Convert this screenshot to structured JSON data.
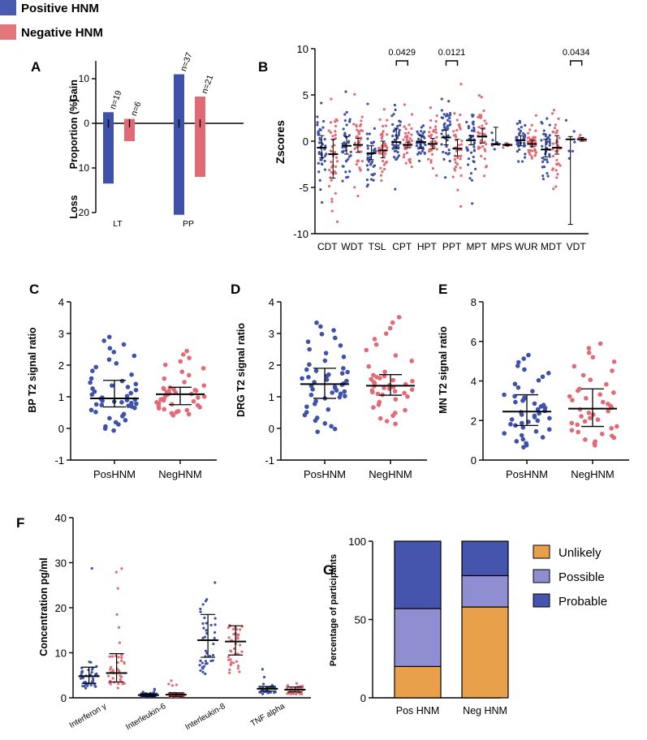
{
  "legend": {
    "items": [
      {
        "label": "Positive HNM",
        "color": "#4a5ab0"
      },
      {
        "label": "Negative HNM",
        "color": "#e5767c"
      }
    ]
  },
  "colors": {
    "pos": "#3d52a8",
    "neg": "#e26a74",
    "unlikely": "#e8a04a",
    "possible": "#8e8ed0",
    "probable": "#4555ad"
  },
  "chart_data": [
    {
      "id": "A",
      "type": "bar",
      "panel_label": "A",
      "title": "",
      "ylabel": "Proportion (%)",
      "gain_label": "Gain",
      "loss_label": "Loss",
      "ylim": [
        -20,
        14
      ],
      "yticks": [
        {
          "v": 10,
          "t": "10"
        },
        {
          "v": 0,
          "t": "0"
        },
        {
          "v": -10,
          "t": "10"
        },
        {
          "v": -20,
          "t": "20"
        }
      ],
      "categories": [
        "LT",
        "PP"
      ],
      "n_labels": [
        [
          "n=19",
          "n=6"
        ],
        [
          "n=37",
          "n=21"
        ]
      ],
      "series": [
        {
          "name": "Positive HNM",
          "gain": [
            2.5,
            11.0
          ],
          "loss": [
            -13.5,
            -20.5
          ]
        },
        {
          "name": "Negative HNM",
          "gain": [
            1.0,
            6.0
          ],
          "loss": [
            -4.0,
            -12.0
          ]
        }
      ]
    },
    {
      "id": "B",
      "type": "scatter",
      "panel_label": "B",
      "ylabel": "Zscores",
      "ylim": [
        -10,
        10
      ],
      "yticks": [
        "-10",
        "-5",
        "0",
        "5",
        "10"
      ],
      "categories": [
        "CDT",
        "WDT",
        "TSL",
        "CPT",
        "HPT",
        "PPT",
        "MPT",
        "MPS",
        "WUR",
        "MDT",
        "VDT"
      ],
      "series": [
        {
          "name": "Positive HNM",
          "median": [
            -0.7,
            -0.5,
            -1.3,
            -0.1,
            -0.1,
            0.4,
            0.1,
            -0.3,
            0.1,
            -0.9,
            0.2
          ],
          "q1": [
            -1.8,
            -1.4,
            -2.0,
            -0.8,
            -0.8,
            -0.4,
            -0.4,
            -0.4,
            -0.5,
            -1.7,
            -9.0
          ],
          "q3": [
            0.6,
            0.5,
            -0.5,
            1.4,
            0.6,
            1.2,
            0.6,
            1.5,
            0.6,
            0.2,
            0.5
          ],
          "spread": [
            2.2,
            1.8,
            1.4,
            1.5,
            1.1,
            1.7,
            1.7,
            0.6,
            1.1,
            1.6,
            2.0
          ]
        },
        {
          "name": "Negative HNM",
          "median": [
            -1.4,
            -0.4,
            -1.0,
            -0.4,
            -0.3,
            -0.8,
            0.5,
            -0.4,
            -0.3,
            -0.7,
            0.2
          ],
          "q1": [
            -4.0,
            -1.2,
            -1.8,
            -0.7,
            -0.8,
            -1.6,
            -0.2,
            -0.5,
            -0.6,
            -1.4,
            0.0
          ],
          "q3": [
            0.2,
            0.3,
            0.0,
            -0.1,
            0.3,
            0.2,
            1.4,
            -0.3,
            0.1,
            0.6,
            0.4
          ],
          "spread": [
            2.4,
            2.0,
            1.6,
            0.9,
            1.2,
            2.0,
            1.9,
            0.3,
            0.9,
            1.7,
            0.4
          ]
        }
      ],
      "annotations": [
        {
          "category": "CPT",
          "text": "0.0429"
        },
        {
          "category": "PPT",
          "text": "0.0121"
        },
        {
          "category": "VDT",
          "text": "0.0434"
        }
      ]
    },
    {
      "id": "C",
      "type": "scatter",
      "panel_label": "C",
      "ylabel": "BP T2 signal ratio",
      "ylim": [
        -1,
        4
      ],
      "yticks": [
        "-1",
        "0",
        "1",
        "2",
        "3",
        "4"
      ],
      "categories": [
        "PosHNM",
        "NegHNM"
      ],
      "median": [
        0.95,
        1.08
      ],
      "q1": [
        0.68,
        0.75
      ],
      "q3": [
        1.52,
        1.3
      ],
      "min": [
        -0.1,
        0.4
      ],
      "max": [
        2.95,
        2.5
      ],
      "n": [
        48,
        44
      ]
    },
    {
      "id": "D",
      "type": "scatter",
      "panel_label": "D",
      "ylabel": "DRG T2 signal ratio",
      "ylim": [
        -1,
        4
      ],
      "yticks": [
        "-1",
        "0",
        "1",
        "2",
        "3",
        "4"
      ],
      "categories": [
        "PosHNM",
        "NegHNM"
      ],
      "median": [
        1.4,
        1.35
      ],
      "q1": [
        0.95,
        1.05
      ],
      "q3": [
        1.9,
        1.7
      ],
      "min": [
        -0.15,
        0.1
      ],
      "max": [
        3.4,
        3.6
      ],
      "n": [
        50,
        44
      ]
    },
    {
      "id": "E",
      "type": "scatter",
      "panel_label": "E",
      "ylabel": "MN T2 signal ratio",
      "ylim": [
        0,
        8
      ],
      "yticks": [
        "0",
        "2",
        "4",
        "6",
        "8"
      ],
      "categories": [
        "PosHNM",
        "NegHNM"
      ],
      "median": [
        2.45,
        2.6
      ],
      "q1": [
        1.75,
        1.7
      ],
      "q3": [
        3.3,
        3.6
      ],
      "min": [
        0.6,
        0.7
      ],
      "max": [
        5.4,
        6.0
      ],
      "n": [
        46,
        42
      ]
    },
    {
      "id": "F",
      "type": "scatter",
      "panel_label": "F",
      "ylabel": "Concentration pg/ml",
      "ylim": [
        0,
        40
      ],
      "yticks": [
        "0",
        "10",
        "20",
        "30",
        "40"
      ],
      "categories": [
        "Interferon γ",
        "Interleukin-6",
        "Interleukin-8",
        "TNF alpha"
      ],
      "series": [
        {
          "name": "Positive HNM",
          "median": [
            4.8,
            0.6,
            12.8,
            2.0
          ],
          "q1": [
            3.2,
            0.3,
            9.0,
            1.5
          ],
          "q3": [
            6.8,
            0.9,
            18.5,
            2.5
          ],
          "max": [
            32.0,
            2.0,
            30.5,
            7.0
          ]
        },
        {
          "name": "Negative HNM",
          "median": [
            5.5,
            0.7,
            12.5,
            1.8
          ],
          "q1": [
            3.5,
            0.3,
            9.5,
            1.3
          ],
          "q3": [
            9.8,
            1.1,
            16.0,
            2.4
          ],
          "max": [
            29.5,
            4.0,
            29.5,
            6.0
          ]
        }
      ]
    },
    {
      "id": "G",
      "type": "bar",
      "stacked": true,
      "panel_label": "G",
      "ylabel": "Percentage of participants",
      "ylim": [
        0,
        100
      ],
      "yticks": [
        "0",
        "50",
        "100"
      ],
      "categories": [
        "Pos HNM",
        "Neg HNM"
      ],
      "series": [
        {
          "name": "Unlikely",
          "values": [
            20,
            58
          ]
        },
        {
          "name": "Possible",
          "values": [
            37,
            20
          ]
        },
        {
          "name": "Probable",
          "values": [
            43,
            22
          ]
        }
      ]
    }
  ]
}
